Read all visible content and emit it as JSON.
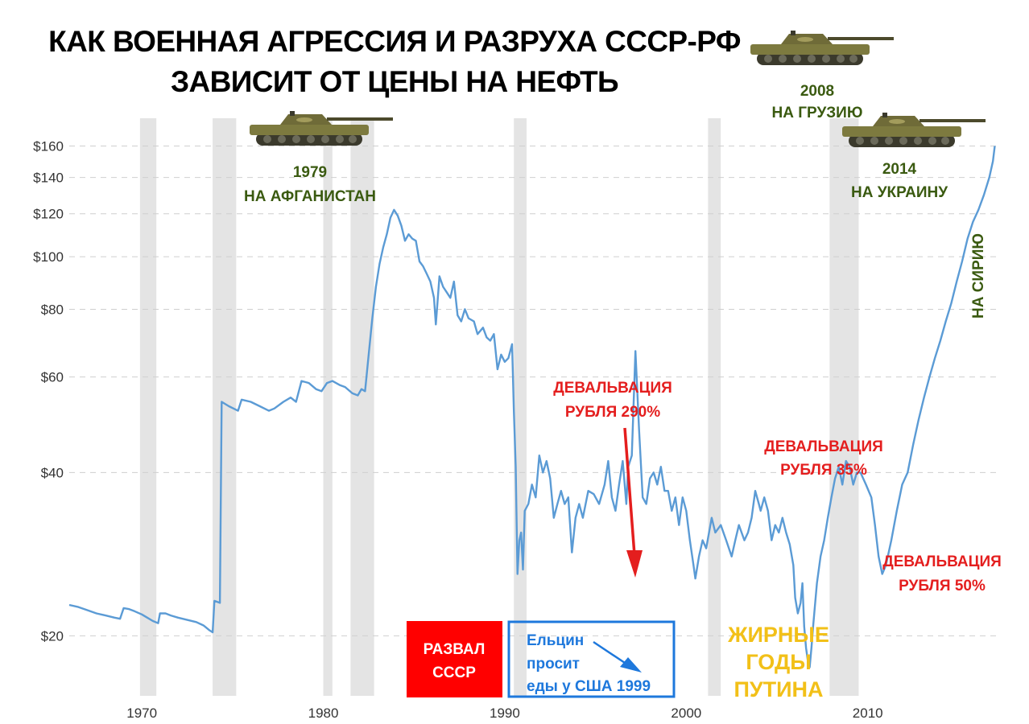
{
  "colors": {
    "line": "#5b9bd5",
    "recession": "#e4e4e4",
    "grid": "#cfcfcf",
    "red": "#e41e1e",
    "blue": "#1e78dc",
    "green": "#3a5a10",
    "yellow": "#f2c018"
  },
  "chart_data": {
    "type": "line",
    "title": [
      "КАК ВОЕННАЯ АГРЕССИЯ И РАЗРУХА СССР-РФ",
      "ЗАВИСИТ ОТ ЦЕНЫ НА НЕФТЬ"
    ],
    "xlabel": "",
    "ylabel": "",
    "x_range": [
      1966,
      2017.2
    ],
    "y_scale": "log",
    "y_range": [
      15.5,
      180
    ],
    "y_ticks": [
      {
        "value": 20,
        "label": "$20"
      },
      {
        "value": 40,
        "label": "$40"
      },
      {
        "value": 60,
        "label": "$60"
      },
      {
        "value": 80,
        "label": "$80"
      },
      {
        "value": 100,
        "label": "$100"
      },
      {
        "value": 120,
        "label": "$120"
      },
      {
        "value": 140,
        "label": "$140"
      },
      {
        "value": 160,
        "label": "$160"
      }
    ],
    "x_ticks": [
      {
        "value": 1970,
        "label": "1970"
      },
      {
        "value": 1980,
        "label": "1980"
      },
      {
        "value": 1990,
        "label": "1990"
      },
      {
        "value": 2000,
        "label": "2000"
      },
      {
        "value": 2010,
        "label": "2010"
      }
    ],
    "grid": "horizontal-dashed",
    "recessions": [
      [
        1969.9,
        1970.8
      ],
      [
        1973.9,
        1975.2
      ],
      [
        1980.0,
        1980.5
      ],
      [
        1981.5,
        1982.8
      ],
      [
        1990.5,
        1991.2
      ],
      [
        2001.2,
        2001.9
      ],
      [
        2007.9,
        2009.5
      ]
    ],
    "series": [
      {
        "points": [
          [
            1966.0,
            22.8
          ],
          [
            1966.5,
            22.6
          ],
          [
            1967.0,
            22.3
          ],
          [
            1967.5,
            22.0
          ],
          [
            1968.0,
            21.8
          ],
          [
            1968.5,
            21.6
          ],
          [
            1968.8,
            21.5
          ],
          [
            1969.0,
            22.5
          ],
          [
            1969.3,
            22.4
          ],
          [
            1969.6,
            22.2
          ],
          [
            1970.0,
            21.9
          ],
          [
            1970.3,
            21.6
          ],
          [
            1970.6,
            21.3
          ],
          [
            1970.9,
            21.1
          ],
          [
            1971.0,
            22.0
          ],
          [
            1971.3,
            22.0
          ],
          [
            1971.6,
            21.8
          ],
          [
            1972.0,
            21.6
          ],
          [
            1972.5,
            21.4
          ],
          [
            1973.0,
            21.2
          ],
          [
            1973.4,
            20.9
          ],
          [
            1973.7,
            20.5
          ],
          [
            1973.9,
            20.3
          ],
          [
            1974.0,
            23.2
          ],
          [
            1974.3,
            23.0
          ],
          [
            1974.4,
            54.0
          ],
          [
            1974.8,
            53.0
          ],
          [
            1975.3,
            52.0
          ],
          [
            1975.5,
            54.5
          ],
          [
            1976.0,
            54.0
          ],
          [
            1976.5,
            53.0
          ],
          [
            1977.0,
            52.0
          ],
          [
            1977.3,
            52.5
          ],
          [
            1977.8,
            54.0
          ],
          [
            1978.2,
            55.0
          ],
          [
            1978.5,
            54.0
          ],
          [
            1978.8,
            59.0
          ],
          [
            1979.2,
            58.5
          ],
          [
            1979.6,
            57.0
          ],
          [
            1979.9,
            56.5
          ],
          [
            1980.2,
            58.5
          ],
          [
            1980.5,
            59.0
          ],
          [
            1980.9,
            58.0
          ],
          [
            1981.2,
            57.5
          ],
          [
            1981.6,
            56.0
          ],
          [
            1981.9,
            55.5
          ],
          [
            1982.1,
            57.0
          ],
          [
            1982.3,
            56.5
          ],
          [
            1982.5,
            66.0
          ],
          [
            1982.7,
            77.0
          ],
          [
            1982.9,
            88.0
          ],
          [
            1983.1,
            97.0
          ],
          [
            1983.3,
            104.0
          ],
          [
            1983.5,
            110.0
          ],
          [
            1983.7,
            118.0
          ],
          [
            1983.9,
            122.0
          ],
          [
            1984.1,
            119.0
          ],
          [
            1984.3,
            114.0
          ],
          [
            1984.5,
            107.0
          ],
          [
            1984.7,
            110.0
          ],
          [
            1984.9,
            108.0
          ],
          [
            1985.1,
            107.0
          ],
          [
            1985.3,
            98.0
          ],
          [
            1985.5,
            96.0
          ],
          [
            1985.7,
            93.0
          ],
          [
            1985.9,
            90.0
          ],
          [
            1986.1,
            84.0
          ],
          [
            1986.2,
            75.0
          ],
          [
            1986.4,
            92.0
          ],
          [
            1986.6,
            88.0
          ],
          [
            1986.8,
            86.0
          ],
          [
            1987.0,
            84.0
          ],
          [
            1987.2,
            90.0
          ],
          [
            1987.4,
            78.0
          ],
          [
            1987.6,
            76.0
          ],
          [
            1987.8,
            80.0
          ],
          [
            1988.0,
            77.0
          ],
          [
            1988.3,
            76.0
          ],
          [
            1988.5,
            72.0
          ],
          [
            1988.8,
            74.0
          ],
          [
            1989.0,
            71.0
          ],
          [
            1989.2,
            70.0
          ],
          [
            1989.4,
            72.0
          ],
          [
            1989.6,
            62.0
          ],
          [
            1989.8,
            66.0
          ],
          [
            1990.0,
            64.0
          ],
          [
            1990.2,
            65.0
          ],
          [
            1990.4,
            69.0
          ],
          [
            1990.5,
            52.0
          ],
          [
            1990.6,
            41.0
          ],
          [
            1990.7,
            26.0
          ],
          [
            1990.8,
            30.0
          ],
          [
            1990.9,
            31.0
          ],
          [
            1991.0,
            26.5
          ],
          [
            1991.1,
            34.0
          ],
          [
            1991.3,
            35.0
          ],
          [
            1991.5,
            38.0
          ],
          [
            1991.7,
            36.0
          ],
          [
            1991.9,
            43.0
          ],
          [
            1992.1,
            40.0
          ],
          [
            1992.3,
            42.0
          ],
          [
            1992.5,
            39.0
          ],
          [
            1992.7,
            33.0
          ],
          [
            1992.9,
            35.0
          ],
          [
            1993.1,
            37.0
          ],
          [
            1993.3,
            35.0
          ],
          [
            1993.5,
            36.0
          ],
          [
            1993.7,
            28.5
          ],
          [
            1993.9,
            33.0
          ],
          [
            1994.1,
            35.0
          ],
          [
            1994.3,
            33.0
          ],
          [
            1994.6,
            37.0
          ],
          [
            1994.9,
            36.5
          ],
          [
            1995.2,
            35.0
          ],
          [
            1995.5,
            38.0
          ],
          [
            1995.7,
            42.0
          ],
          [
            1995.9,
            36.0
          ],
          [
            1996.1,
            34.0
          ],
          [
            1996.3,
            38.0
          ],
          [
            1996.5,
            42.0
          ],
          [
            1996.7,
            35.0
          ],
          [
            1996.8,
            41.0
          ],
          [
            1997.0,
            43.0
          ],
          [
            1997.2,
            67.0
          ],
          [
            1997.4,
            48.0
          ],
          [
            1997.6,
            36.0
          ],
          [
            1997.8,
            35.0
          ],
          [
            1998.0,
            39.0
          ],
          [
            1998.2,
            40.0
          ],
          [
            1998.4,
            38.0
          ],
          [
            1998.6,
            41.0
          ],
          [
            1998.8,
            37.0
          ],
          [
            1999.0,
            37.0
          ],
          [
            1999.2,
            34.0
          ],
          [
            1999.4,
            36.0
          ],
          [
            1999.6,
            32.0
          ],
          [
            1999.8,
            36.0
          ],
          [
            2000.0,
            34.0
          ],
          [
            2000.2,
            30.0
          ],
          [
            2000.4,
            27.0
          ],
          [
            2000.5,
            25.5
          ],
          [
            2000.7,
            28.0
          ],
          [
            2000.9,
            30.0
          ],
          [
            2001.1,
            29.0
          ],
          [
            2001.4,
            33.0
          ],
          [
            2001.6,
            31.0
          ],
          [
            2001.9,
            32.0
          ],
          [
            2002.2,
            30.0
          ],
          [
            2002.5,
            28.0
          ],
          [
            2002.7,
            30.0
          ],
          [
            2002.9,
            32.0
          ],
          [
            2003.2,
            30.0
          ],
          [
            2003.4,
            31.0
          ],
          [
            2003.6,
            33.0
          ],
          [
            2003.8,
            37.0
          ],
          [
            2004.0,
            35.0
          ],
          [
            2004.1,
            34.0
          ],
          [
            2004.3,
            36.0
          ],
          [
            2004.5,
            34.0
          ],
          [
            2004.7,
            30.0
          ],
          [
            2004.9,
            32.0
          ],
          [
            2005.1,
            31.0
          ],
          [
            2005.3,
            33.0
          ],
          [
            2005.5,
            31.0
          ],
          [
            2005.7,
            29.5
          ],
          [
            2005.9,
            27.0
          ],
          [
            2006.0,
            23.5
          ],
          [
            2006.15,
            22.0
          ],
          [
            2006.3,
            23.0
          ],
          [
            2006.4,
            25.0
          ],
          [
            2006.5,
            20.8
          ],
          [
            2006.6,
            19.0
          ],
          [
            2006.7,
            18.0
          ],
          [
            2006.8,
            17.5
          ],
          [
            2006.9,
            19.0
          ],
          [
            2007.0,
            21.0
          ],
          [
            2007.2,
            25.0
          ],
          [
            2007.4,
            28.0
          ],
          [
            2007.6,
            30.0
          ],
          [
            2007.8,
            33.0
          ],
          [
            2008.0,
            36.0
          ],
          [
            2008.2,
            39.0
          ],
          [
            2008.4,
            41.0
          ],
          [
            2008.6,
            38.0
          ],
          [
            2008.8,
            42.0
          ],
          [
            2009.0,
            41.0
          ],
          [
            2009.2,
            38.0
          ],
          [
            2009.4,
            40.0
          ],
          [
            2009.6,
            40.0
          ],
          [
            2009.9,
            38.0
          ],
          [
            2010.2,
            36.0
          ],
          [
            2010.4,
            32.0
          ],
          [
            2010.6,
            28.0
          ],
          [
            2010.8,
            26.0
          ],
          [
            2011.0,
            27.0
          ],
          [
            2011.3,
            30.0
          ],
          [
            2011.6,
            34.0
          ],
          [
            2011.9,
            38.0
          ],
          [
            2012.2,
            40.0
          ],
          [
            2012.5,
            45.0
          ],
          [
            2012.8,
            50.0
          ],
          [
            2013.1,
            55.0
          ],
          [
            2013.4,
            60.0
          ],
          [
            2013.7,
            65.0
          ],
          [
            2014.0,
            70.0
          ],
          [
            2014.3,
            76.0
          ],
          [
            2014.6,
            82.0
          ],
          [
            2014.9,
            90.0
          ],
          [
            2015.2,
            98.0
          ],
          [
            2015.5,
            108.0
          ],
          [
            2015.8,
            116.0
          ],
          [
            2016.1,
            122.0
          ],
          [
            2016.4,
            130.0
          ],
          [
            2016.7,
            140.0
          ],
          [
            2016.9,
            150.0
          ],
          [
            2017.0,
            160.0
          ]
        ]
      }
    ],
    "annotations": {
      "year_1979": "1979",
      "afghanistan": "НА АФГАНИСТАН",
      "year_2008": "2008",
      "georgia": "НА ГРУЗИЮ",
      "year_2014": "2014",
      "ukraine": "НА УКРАИНУ",
      "syria": "НА СИРИЮ",
      "deval_word": "ДЕВАЛЬВАЦИЯ",
      "deval_290": "РУБЛЯ 290%",
      "deval_35": "РУБЛЯ 35%",
      "deval_50": "РУБЛЯ 50%",
      "ussr_collapse": [
        "РАЗВАЛ",
        "СССР"
      ],
      "yeltsin": [
        "Ельцин",
        "просит",
        "еды у США 1999"
      ],
      "fat_years": [
        "ЖИРНЫЕ",
        "ГОДЫ",
        "ПУТИНА"
      ]
    }
  }
}
